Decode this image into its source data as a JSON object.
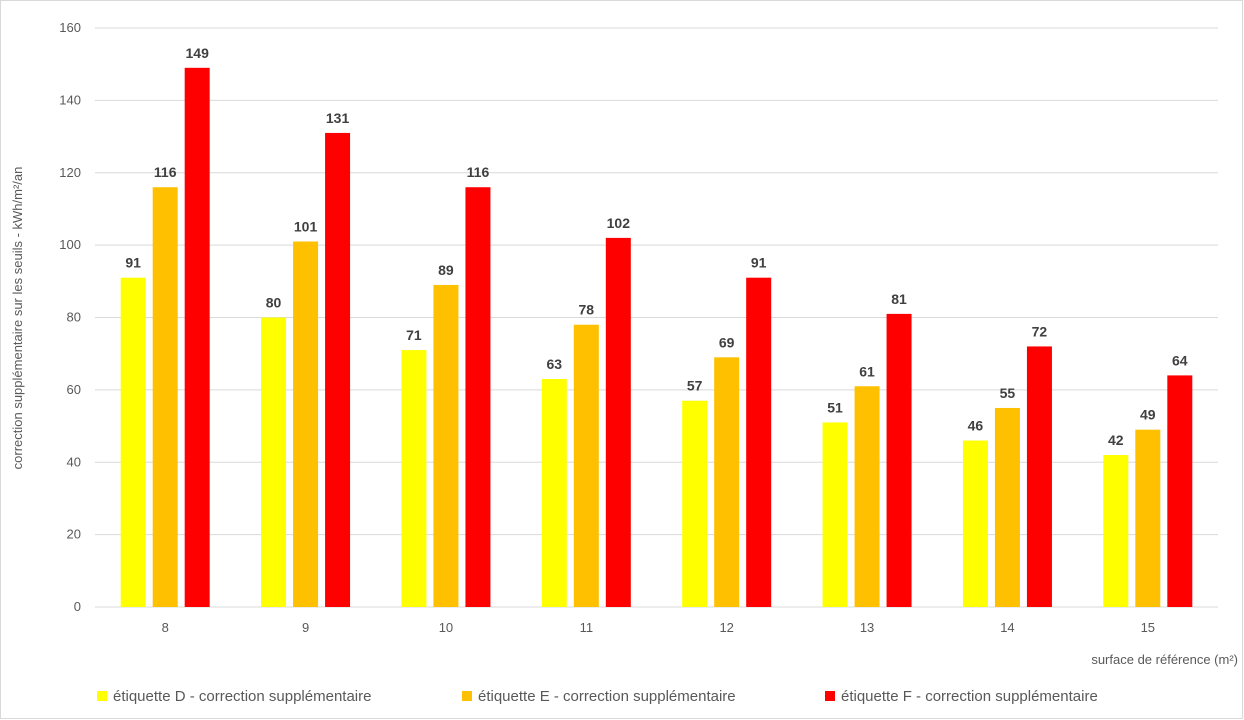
{
  "chart_data": {
    "type": "bar",
    "title": "",
    "xlabel": "surface de référence (m²)",
    "ylabel": "correction supplémentaire sur les seuils - kWh/m²/an",
    "categories": [
      "8",
      "9",
      "10",
      "11",
      "12",
      "13",
      "14",
      "15"
    ],
    "ylim": [
      0,
      160
    ],
    "yticks": [
      "0",
      "20",
      "40",
      "60",
      "80",
      "100",
      "120",
      "140",
      "160"
    ],
    "grid": "horizontal",
    "legend_position": "bottom",
    "series": [
      {
        "name": "étiquette D - correction supplémentaire",
        "color": "#ffff00",
        "values": [
          91,
          80,
          71,
          63,
          57,
          51,
          46,
          42
        ]
      },
      {
        "name": "étiquette E - correction supplémentaire",
        "color": "#ffc000",
        "values": [
          116,
          101,
          89,
          78,
          69,
          61,
          55,
          49
        ]
      },
      {
        "name": "étiquette F - correction supplémentaire",
        "color": "#ff0000",
        "values": [
          149,
          131,
          116,
          102,
          91,
          81,
          72,
          64
        ]
      }
    ]
  }
}
